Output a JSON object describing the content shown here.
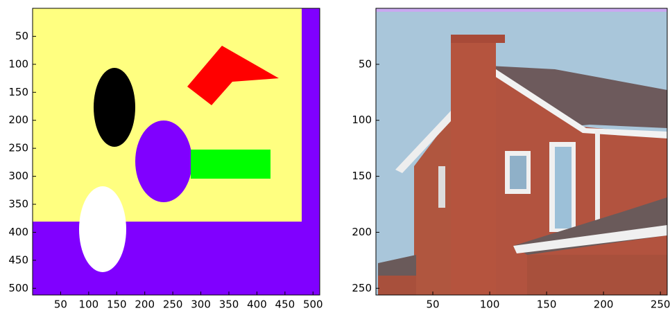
{
  "chart_data": [
    {
      "type": "image",
      "xlim": [
        0,
        512
      ],
      "ylim": [
        512,
        0
      ],
      "xticks": [
        50,
        100,
        150,
        200,
        250,
        300,
        350,
        400,
        450,
        500
      ],
      "yticks": [
        50,
        100,
        150,
        200,
        250,
        300,
        350,
        400,
        450,
        500
      ]
    },
    {
      "type": "image",
      "xlim": [
        0,
        256
      ],
      "ylim": [
        256,
        0
      ],
      "xticks": [
        50,
        100,
        150,
        200,
        250
      ],
      "yticks": [
        50,
        100,
        150,
        200,
        250
      ]
    }
  ]
}
